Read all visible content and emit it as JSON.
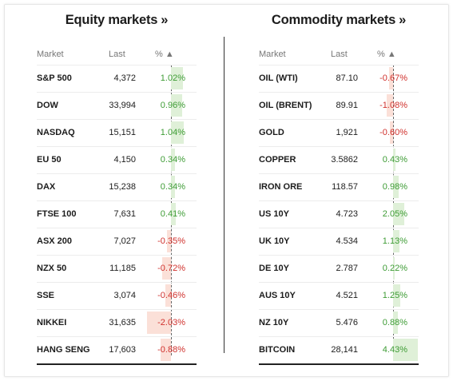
{
  "equity": {
    "title": "Equity markets",
    "title_arrow": "»",
    "headers": {
      "market": "Market",
      "last": "Last",
      "pct": "% ▲"
    },
    "rows": [
      {
        "name": "S&P 500",
        "last": "4,372",
        "pct": "1.02%",
        "value": 1.02
      },
      {
        "name": "DOW",
        "last": "33,994",
        "pct": "0.96%",
        "value": 0.96
      },
      {
        "name": "NASDAQ",
        "last": "15,151",
        "pct": "1.04%",
        "value": 1.04
      },
      {
        "name": "EU 50",
        "last": "4,150",
        "pct": "0.34%",
        "value": 0.34
      },
      {
        "name": "DAX",
        "last": "15,238",
        "pct": "0.34%",
        "value": 0.34
      },
      {
        "name": "FTSE 100",
        "last": "7,631",
        "pct": "0.41%",
        "value": 0.41
      },
      {
        "name": "ASX 200",
        "last": "7,027",
        "pct": "-0.35%",
        "value": -0.35
      },
      {
        "name": "NZX 50",
        "last": "11,185",
        "pct": "-0.72%",
        "value": -0.72
      },
      {
        "name": "SSE",
        "last": "3,074",
        "pct": "-0.46%",
        "value": -0.46
      },
      {
        "name": "NIKKEI",
        "last": "31,635",
        "pct": "-2.03%",
        "value": -2.03
      },
      {
        "name": "HANG SENG",
        "last": "17,603",
        "pct": "-0.88%",
        "value": -0.88
      }
    ]
  },
  "commodity": {
    "title": "Commodity markets",
    "title_arrow": "»",
    "headers": {
      "market": "Market",
      "last": "Last",
      "pct": "% ▲"
    },
    "rows": [
      {
        "name": "OIL (WTI)",
        "last": "87.10",
        "pct": "-0.67%",
        "value": -0.67
      },
      {
        "name": "OIL (BRENT)",
        "last": "89.91",
        "pct": "-1.08%",
        "value": -1.08
      },
      {
        "name": "GOLD",
        "last": "1,921",
        "pct": "-0.60%",
        "value": -0.6
      },
      {
        "name": "COPPER",
        "last": "3.5862",
        "pct": "0.43%",
        "value": 0.43
      },
      {
        "name": "IRON ORE",
        "last": "118.57",
        "pct": "0.98%",
        "value": 0.98
      },
      {
        "name": "US 10Y",
        "last": "4.723",
        "pct": "2.05%",
        "value": 2.05
      },
      {
        "name": "UK 10Y",
        "last": "4.534",
        "pct": "1.13%",
        "value": 1.13
      },
      {
        "name": "DE 10Y",
        "last": "2.787",
        "pct": "0.22%",
        "value": 0.22
      },
      {
        "name": "AUS 10Y",
        "last": "4.521",
        "pct": "1.25%",
        "value": 1.25
      },
      {
        "name": "NZ 10Y",
        "last": "5.476",
        "pct": "0.88%",
        "value": 0.88
      },
      {
        "name": "BITCOIN",
        "last": "28,141",
        "pct": "4.43%",
        "value": 4.43
      }
    ]
  },
  "colors": {
    "positive_text": "#3e9c35",
    "negative_text": "#d0312d",
    "positive_bar": "#dff0d8",
    "negative_bar": "#fbe0d8"
  }
}
